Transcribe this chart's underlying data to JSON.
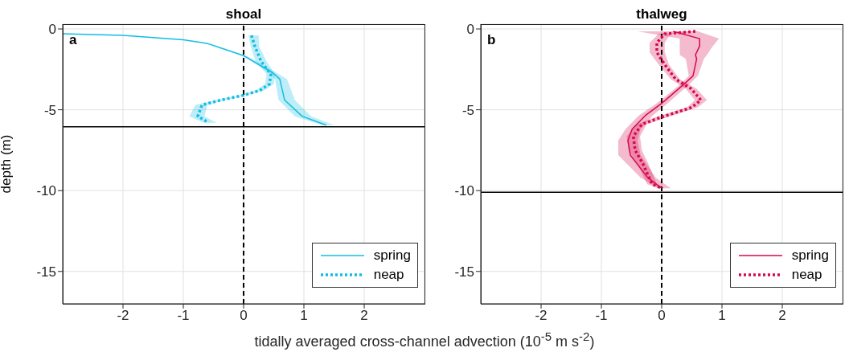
{
  "chart_data": [
    {
      "type": "line",
      "orientation": "horizontal",
      "title": "shoal",
      "ylabel": "depth (m)",
      "xlabel": "tidally averaged cross-channel advection (10$^{-5}$ m s$^{-2}$)",
      "annotations": [
        "a"
      ],
      "xlim": [
        -3,
        3
      ],
      "xticks": [
        -2,
        -1,
        0,
        1,
        2
      ],
      "ylim": [
        -17,
        0.3
      ],
      "yticks": [
        0,
        -5,
        -10,
        -15
      ],
      "grid": true,
      "legend": "bottom right",
      "ref_lines": [
        {
          "axis": "y",
          "value": -6.05,
          "color": "#000000",
          "line_style": "solid"
        },
        {
          "axis": "x",
          "value": 0,
          "color": "#000000",
          "line_style": "dashed"
        }
      ],
      "series": [
        {
          "name": "spring",
          "color": "#12bde4",
          "line_style": "solid",
          "x": [
            -0.3,
            -0.4,
            -0.67,
            -0.9,
            -1.65,
            -2.7,
            -3.1,
            -4.4,
            -5.4,
            -5.95
          ],
          "values": [
            -3,
            -2,
            -1,
            -0.6,
            0,
            0.48,
            0.6,
            0.68,
            0.97,
            1.37
          ],
          "lower": [
            -3,
            -2,
            -1,
            -0.62,
            -0.03,
            0.42,
            0.52,
            0.58,
            0.85,
            1.3
          ],
          "upper": [
            -3,
            -2,
            -1,
            -0.55,
            0.04,
            0.54,
            0.72,
            0.85,
            1.12,
            1.5
          ]
        },
        {
          "name": "neap",
          "color": "#12bde4",
          "line_style": "dotted",
          "x": [
            -0.4,
            -1.1,
            -2.0,
            -2.8,
            -3.4,
            -3.8,
            -4.1,
            -4.4,
            -4.7,
            -5.4,
            -5.8
          ],
          "values": [
            0.13,
            0.19,
            0.29,
            0.45,
            0.43,
            0.27,
            0,
            -0.38,
            -0.69,
            -0.76,
            -0.58
          ],
          "lower": [
            0.08,
            0.12,
            0.2,
            0.38,
            0.36,
            0.2,
            -0.05,
            -0.45,
            -0.8,
            -0.9,
            -0.66
          ],
          "upper": [
            0.25,
            0.26,
            0.38,
            0.52,
            0.5,
            0.34,
            0.05,
            -0.3,
            -0.6,
            -0.65,
            -0.45
          ]
        }
      ]
    },
    {
      "type": "line",
      "orientation": "horizontal",
      "title": "thalweg",
      "annotations": [
        "b"
      ],
      "xlim": [
        -3,
        3
      ],
      "xticks": [
        -2,
        -1,
        0,
        1,
        2
      ],
      "ylim": [
        -17,
        0.3
      ],
      "yticks": [
        0,
        -5,
        -10,
        -15
      ],
      "grid": true,
      "legend": "bottom right",
      "ref_lines": [
        {
          "axis": "y",
          "value": -10.1,
          "color": "#000000",
          "line_style": "solid"
        },
        {
          "axis": "x",
          "value": 0,
          "color": "#000000",
          "line_style": "dashed"
        }
      ],
      "series": [
        {
          "name": "spring",
          "color": "#d6084f",
          "line_style": "solid",
          "x": [
            -0.15,
            -0.6,
            -1.05,
            -1.6,
            -1.85,
            -2.9,
            -3.45,
            -4.6,
            -5.35,
            -6.2,
            -6.9,
            -7.8,
            -9.2,
            -9.85
          ],
          "values": [
            0.19,
            0.63,
            0.63,
            0.56,
            0.58,
            0.52,
            0.36,
            0,
            -0.27,
            -0.49,
            -0.56,
            -0.52,
            -0.23,
            0
          ],
          "lower": [
            -0.4,
            0.3,
            0.3,
            0.3,
            0.4,
            0.45,
            0.3,
            -0.08,
            -0.38,
            -0.6,
            -0.72,
            -0.72,
            -0.35,
            -0.05
          ],
          "upper": [
            0.6,
            0.95,
            0.85,
            0.75,
            0.7,
            0.6,
            0.45,
            0.1,
            -0.15,
            -0.35,
            -0.4,
            -0.35,
            -0.1,
            0.15
          ]
        },
        {
          "name": "neap",
          "color": "#d6084f",
          "line_style": "dotted",
          "x": [
            -0.15,
            -0.3,
            -0.85,
            -1.45,
            -2.2,
            -3.1,
            -3.7,
            -4.4,
            -4.85,
            -5.45,
            -5.9,
            -6.65,
            -7.5,
            -8.35,
            -9.6,
            -9.85
          ],
          "values": [
            0.56,
            0.05,
            -0.08,
            -0.08,
            0.05,
            0.23,
            0.49,
            0.65,
            0.5,
            0,
            -0.33,
            -0.47,
            -0.44,
            -0.31,
            -0.16,
            0
          ],
          "lower": [
            0.5,
            -0.05,
            -0.2,
            -0.2,
            -0.05,
            0.15,
            0.4,
            0.55,
            0.42,
            -0.1,
            -0.42,
            -0.58,
            -0.55,
            -0.4,
            -0.24,
            -0.05
          ],
          "upper": [
            0.65,
            0.15,
            0.05,
            0.05,
            0.12,
            0.3,
            0.58,
            0.75,
            0.6,
            0.1,
            -0.25,
            -0.36,
            -0.33,
            -0.22,
            -0.08,
            0.05
          ]
        }
      ]
    }
  ]
}
